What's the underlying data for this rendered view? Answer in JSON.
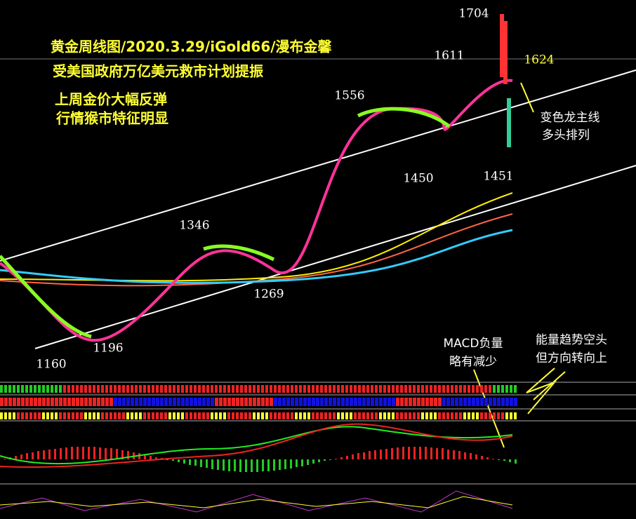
{
  "title_lines": [
    "黄金周线图/2020.3.29/iGold66/漫布金馨",
    "受美国政府万亿美元救市计划提振",
    "上周金价大幅反弹",
    "行情猴市特征明显"
  ],
  "price_labels": [
    1704,
    1611,
    1624,
    1556,
    1450,
    1451,
    1346,
    1269,
    1196,
    1160
  ],
  "annotations": [
    "变色龙主线",
    "多头排列",
    "MACD负量",
    "略有减少",
    "能量趋势空头",
    "但方向转向上"
  ]
}
